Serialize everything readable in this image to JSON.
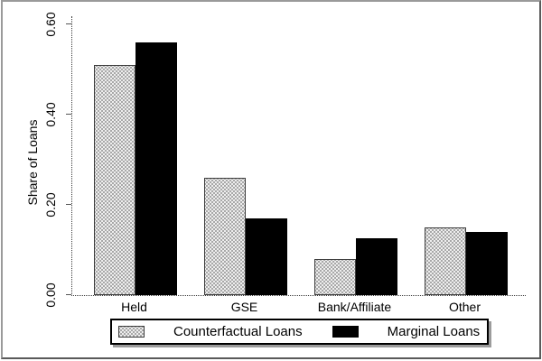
{
  "chart_data": {
    "type": "bar",
    "title": "",
    "categories": [
      "Held",
      "GSE",
      "Bank/Affiliate",
      "Other"
    ],
    "series": [
      {
        "name": "Counterfactual Loans",
        "color": "#a8a8a8",
        "pattern": "dotted-fill",
        "values": [
          0.51,
          0.26,
          0.08,
          0.15
        ]
      },
      {
        "name": "Marginal Loans",
        "color": "#000000",
        "pattern": "solid",
        "values": [
          0.56,
          0.17,
          0.125,
          0.14
        ]
      }
    ],
    "xlabel": "",
    "ylabel": "Share of Loans",
    "yticks": [
      "0.00",
      "0.20",
      "0.40",
      "0.60"
    ],
    "ytick_values": [
      0.0,
      0.2,
      0.4,
      0.6
    ],
    "ylim": [
      0,
      0.6
    ],
    "grid": false,
    "legend_position": "bottom",
    "bar_border_color": "#3c3c3c",
    "legend_shadow_color": "#9c9c9c"
  }
}
